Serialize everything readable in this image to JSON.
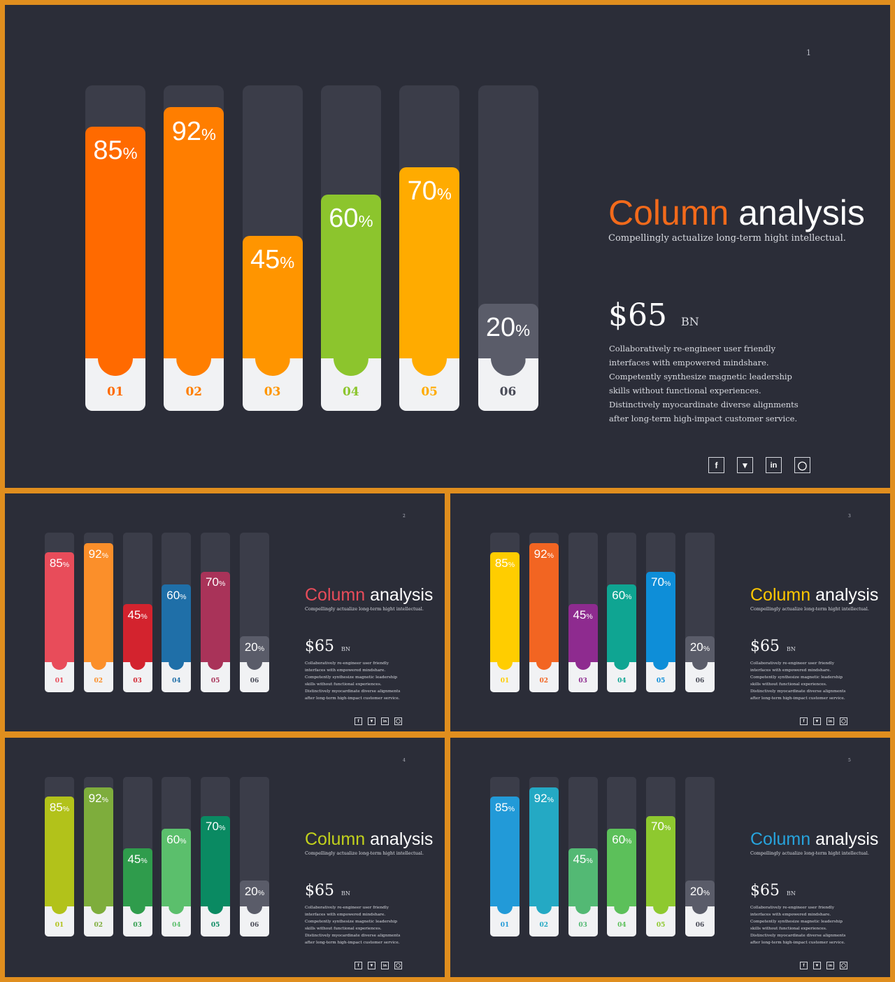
{
  "colors": {
    "frame": "#e08e1e",
    "slide_background": "#2b2d38",
    "track": "#3b3d49",
    "base": "#f1f2f4",
    "gray_bar": "#5a5c69"
  },
  "slides": [
    {
      "page": "1",
      "title_accent": "Column",
      "title_rest": "analysis",
      "accent_color": "#f26a1b",
      "subtitle": "Compellingly actualize long-term hight intellectual.",
      "value": "$65",
      "unit": "BN",
      "description": "Collaboratively re-engineer user friendly interfaces with empowered mindshare. Competently synthesize magnetic leadership skills without functional experiences. Distinctively myocardinate diverse alignments after long-term high-impact customer service.",
      "social_icons": [
        "facebook-icon",
        "twitter-icon",
        "linkedin-icon",
        "instagram-icon"
      ],
      "bar_colors": [
        "#ff6a00",
        "#ff7e00",
        "#ff9500",
        "#8cc52d",
        "#ffab00",
        "#5a5c69"
      ]
    },
    {
      "page": "2",
      "title_accent": "Column",
      "title_rest": "analysis",
      "accent_color": "#e84c5a",
      "subtitle": "Compellingly actualize long-term hight intellectual.",
      "value": "$65",
      "unit": "BN",
      "description": "Collaboratively re-engineer user friendly interfaces with empowered mindshare. Competently synthesize magnetic leadership skills without functional experiences. Distinctively myocardinate diverse alignments after long-term high-impact customer service.",
      "social_icons": [
        "facebook-icon",
        "twitter-icon",
        "linkedin-icon",
        "instagram-icon"
      ],
      "bar_colors": [
        "#e84c5a",
        "#fb8f2a",
        "#d3232e",
        "#1f6fa8",
        "#a93359",
        "#5a5c69"
      ]
    },
    {
      "page": "3",
      "title_accent": "Column",
      "title_rest": "analysis",
      "accent_color": "#ffc700",
      "subtitle": "Compellingly actualize long-term hight intellectual.",
      "value": "$65",
      "unit": "BN",
      "description": "Collaboratively re-engineer user friendly interfaces with empowered mindshare. Competently synthesize magnetic leadership skills without functional experiences. Distinctively myocardinate diverse alignments after long-term high-impact customer service.",
      "social_icons": [
        "facebook-icon",
        "twitter-icon",
        "linkedin-icon",
        "instagram-icon"
      ],
      "bar_colors": [
        "#ffcd00",
        "#f26522",
        "#8e2b8f",
        "#0fa592",
        "#0e8ed8",
        "#5a5c69"
      ]
    },
    {
      "page": "4",
      "title_accent": "Column",
      "title_rest": "analysis",
      "accent_color": "#c2d11c",
      "subtitle": "Compellingly actualize long-term hight intellectual.",
      "value": "$65",
      "unit": "BN",
      "description": "Collaboratively re-engineer user friendly interfaces with empowered mindshare. Competently synthesize magnetic leadership skills without functional experiences. Distinctively myocardinate diverse alignments after long-term high-impact customer service.",
      "social_icons": [
        "facebook-icon",
        "twitter-icon",
        "linkedin-icon",
        "instagram-icon"
      ],
      "bar_colors": [
        "#b2c21a",
        "#7ead3c",
        "#2f9c4c",
        "#5bbf6c",
        "#0a8a62",
        "#5a5c69"
      ]
    },
    {
      "page": "5",
      "title_accent": "Column",
      "title_rest": "analysis",
      "accent_color": "#27a3dc",
      "subtitle": "Compellingly actualize long-term hight intellectual.",
      "value": "$65",
      "unit": "BN",
      "description": "Collaboratively re-engineer user friendly interfaces with empowered mindshare. Competently synthesize magnetic leadership skills without functional experiences. Distinctively myocardinate diverse alignments after long-term high-impact customer service.",
      "social_icons": [
        "facebook-icon",
        "twitter-icon",
        "linkedin-icon",
        "instagram-icon"
      ],
      "bar_colors": [
        "#229ad8",
        "#24a9c4",
        "#53b974",
        "#5cc05a",
        "#8ec92f",
        "#5a5c69"
      ]
    }
  ],
  "chart_data": [
    {
      "type": "bar",
      "categories": [
        "01",
        "02",
        "03",
        "04",
        "05",
        "06"
      ],
      "values": [
        85,
        92,
        45,
        60,
        70,
        20
      ],
      "value_suffix": "%",
      "ylim": [
        0,
        100
      ]
    },
    {
      "type": "bar",
      "categories": [
        "01",
        "02",
        "03",
        "04",
        "05",
        "06"
      ],
      "values": [
        85,
        92,
        45,
        60,
        70,
        20
      ],
      "value_suffix": "%",
      "ylim": [
        0,
        100
      ]
    },
    {
      "type": "bar",
      "categories": [
        "01",
        "02",
        "03",
        "04",
        "05",
        "06"
      ],
      "values": [
        85,
        92,
        45,
        60,
        70,
        20
      ],
      "value_suffix": "%",
      "ylim": [
        0,
        100
      ]
    },
    {
      "type": "bar",
      "categories": [
        "01",
        "02",
        "03",
        "04",
        "05",
        "06"
      ],
      "values": [
        85,
        92,
        45,
        60,
        70,
        20
      ],
      "value_suffix": "%",
      "ylim": [
        0,
        100
      ]
    },
    {
      "type": "bar",
      "categories": [
        "01",
        "02",
        "03",
        "04",
        "05",
        "06"
      ],
      "values": [
        85,
        92,
        45,
        60,
        70,
        20
      ],
      "value_suffix": "%",
      "ylim": [
        0,
        100
      ]
    }
  ]
}
